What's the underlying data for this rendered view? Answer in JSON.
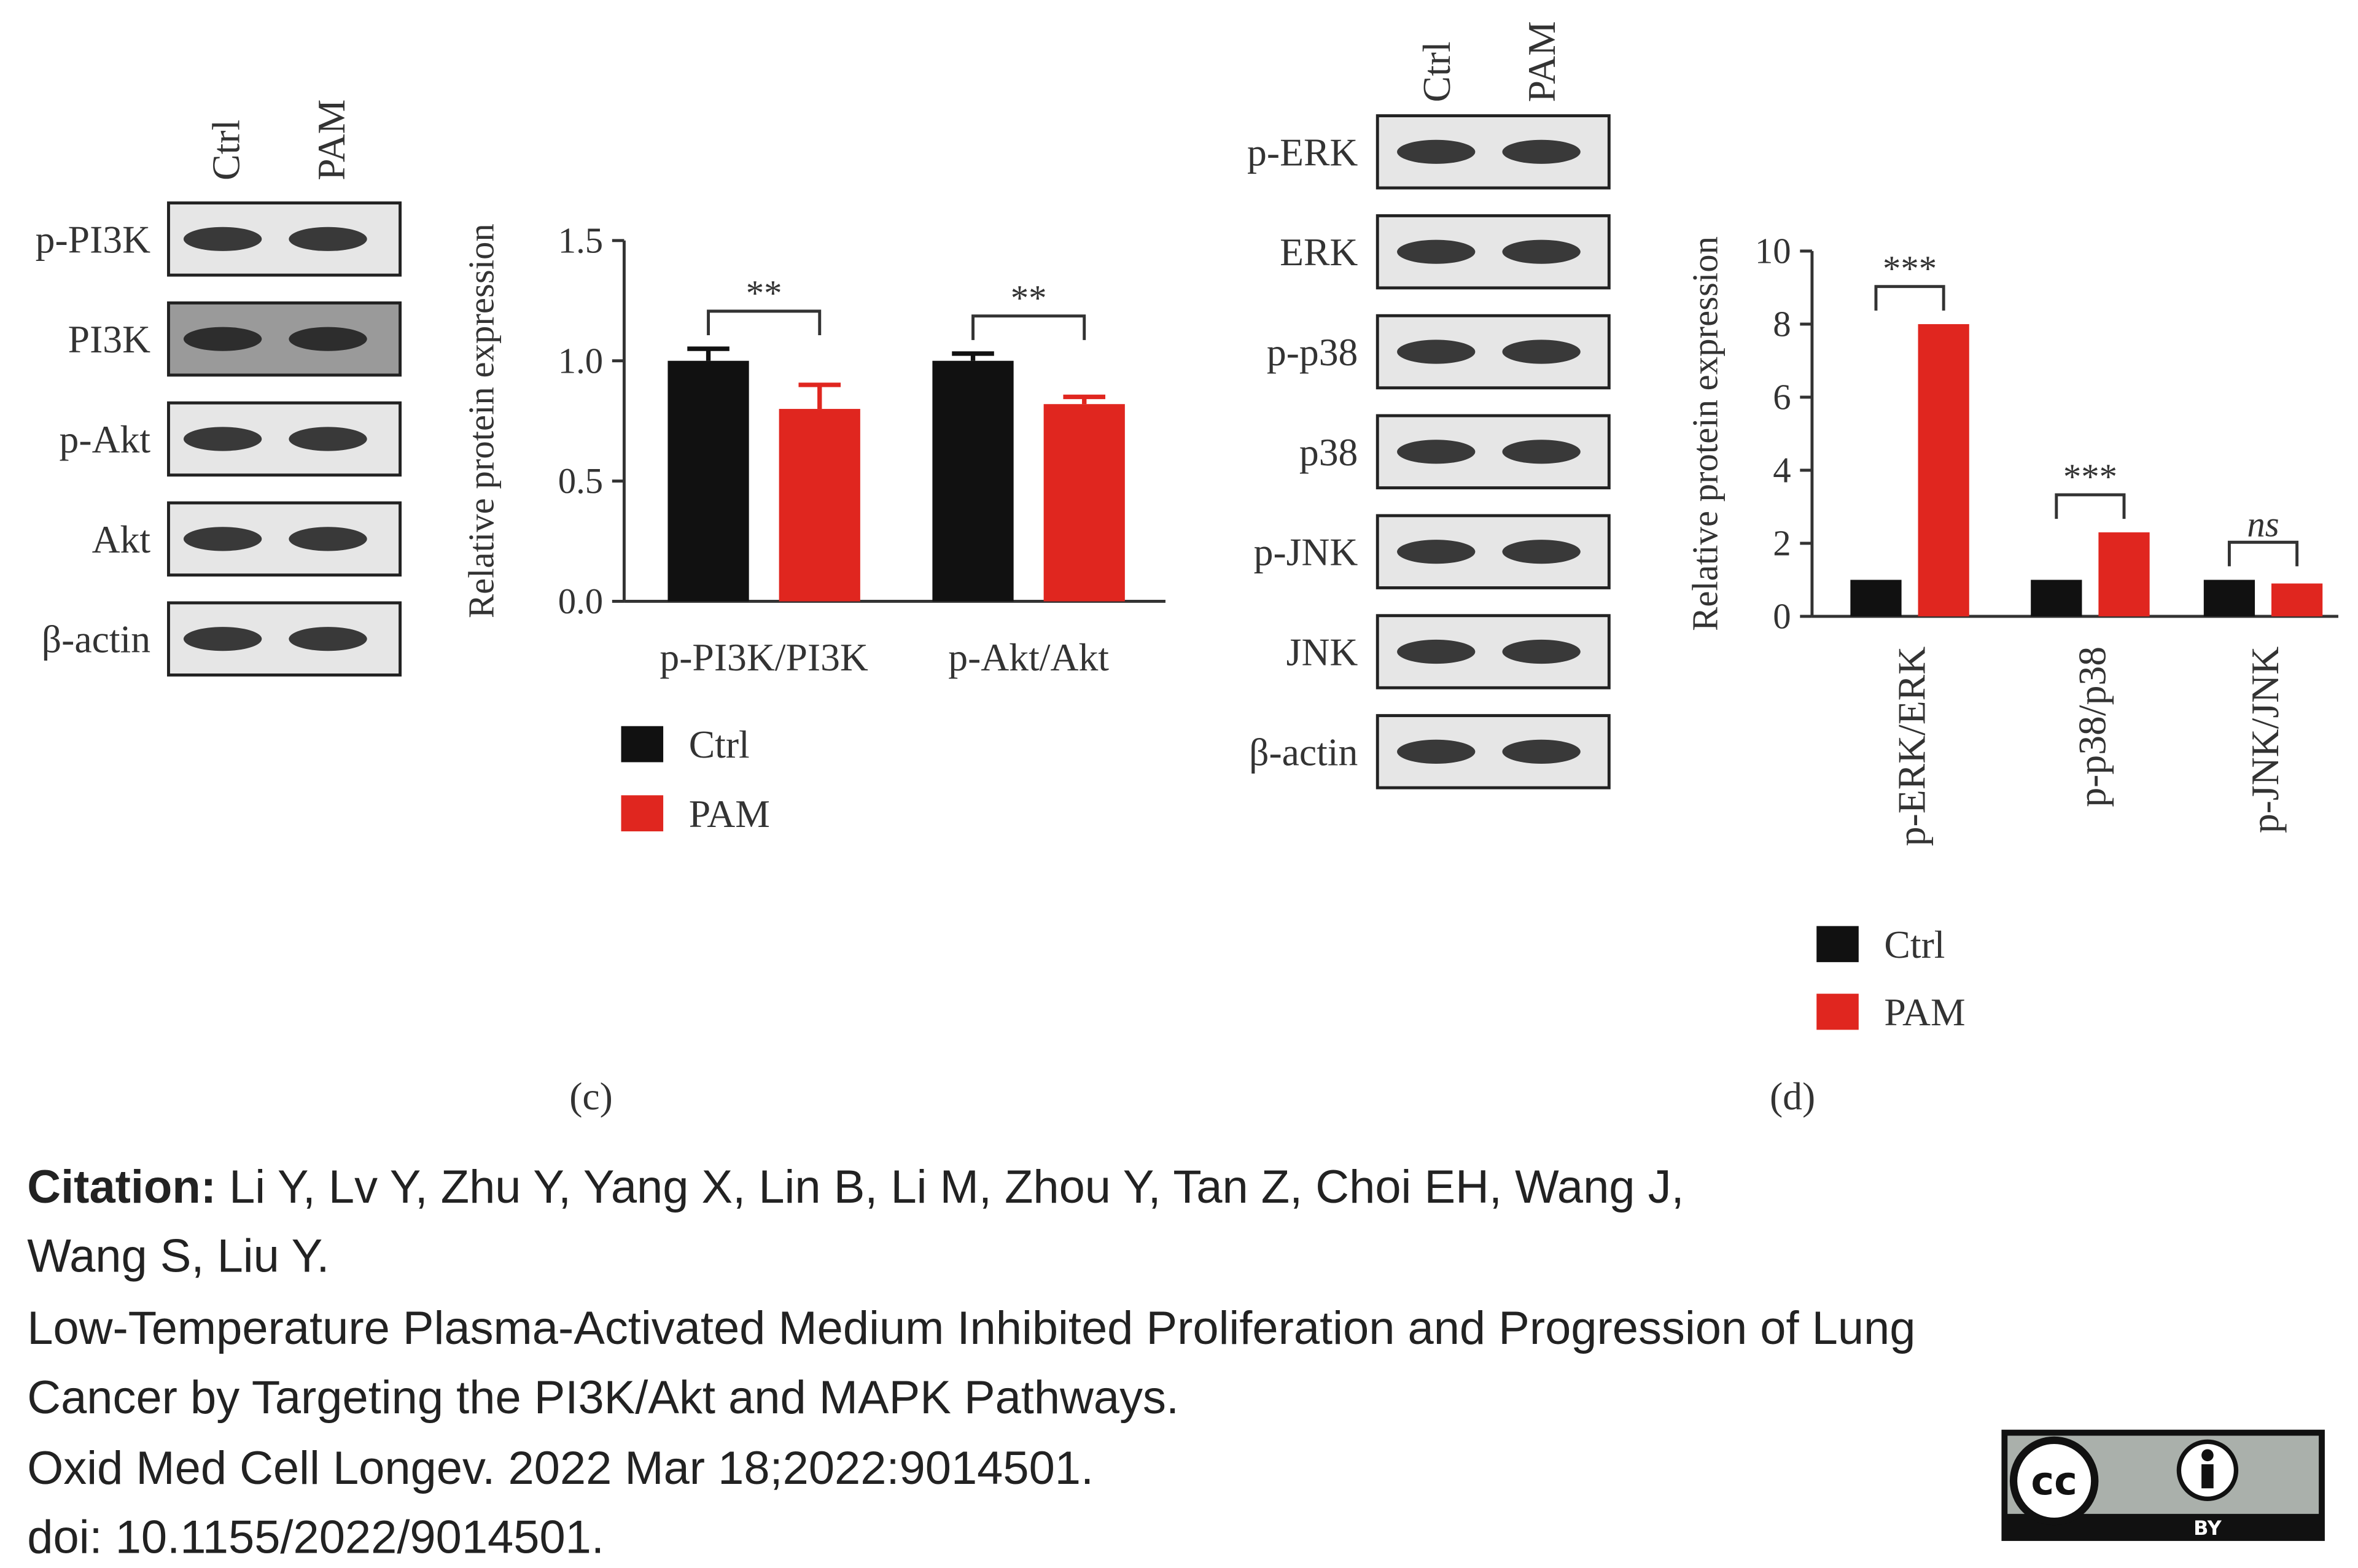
{
  "chart_data": [
    {
      "type": "bar",
      "ylabel": "Relative protein expression",
      "categories": [
        "p-PI3K/PI3K",
        "p-Akt/Akt"
      ],
      "series": [
        {
          "name": "Ctrl",
          "color": "#111111",
          "values": [
            1.0,
            1.0
          ],
          "errors": [
            0.05,
            0.03
          ]
        },
        {
          "name": "PAM",
          "color": "#e0261f",
          "values": [
            0.8,
            0.82
          ],
          "errors": [
            0.1,
            0.03
          ]
        }
      ],
      "significance": [
        "**",
        "**"
      ],
      "ylim": [
        0,
        1.5
      ],
      "yticks": [
        {
          "value": 0,
          "label": "0.0"
        },
        {
          "value": 0.5,
          "label": "0.5"
        },
        {
          "value": 1,
          "label": "1.0"
        },
        {
          "value": 1.5,
          "label": "1.5"
        }
      ],
      "grid": false
    },
    {
      "type": "bar",
      "ylabel": "Relative protein expression",
      "categories": [
        "p-ERK/ERK",
        "p-p38/p38",
        "p-JNK/JNK"
      ],
      "series": [
        {
          "name": "Ctrl",
          "color": "#111111",
          "values": [
            1,
            1,
            1
          ]
        },
        {
          "name": "PAM",
          "color": "#e0261f",
          "values": [
            8.0,
            2.3,
            0.9
          ]
        }
      ],
      "significance": [
        "***",
        "***",
        "ns"
      ],
      "ylim": [
        0,
        10
      ],
      "yticks": [
        0,
        2,
        4,
        6,
        8,
        10
      ],
      "grid": false
    }
  ],
  "blots": [
    {
      "lanes": [
        "Ctrl",
        "PAM"
      ],
      "rows": [
        "p-PI3K",
        "PI3K",
        "p-Akt",
        "Akt",
        "β-actin"
      ]
    },
    {
      "lanes": [
        "Ctrl",
        "PAM"
      ],
      "rows": [
        "p-ERK",
        "ERK",
        "p-p38",
        "p38",
        "p-JNK",
        "JNK",
        "β-actin"
      ]
    }
  ],
  "panel_labels": [
    "(c)",
    "(d)"
  ],
  "citation": {
    "label": "Citation:",
    "authors_lines": [
      " Li Y, Lv Y, Zhu Y, Yang X, Lin B, Li M, Zhou Y, Tan Z, Choi EH, Wang J,",
      "Wang S, Liu Y."
    ],
    "title_lines": [
      "Low-Temperature Plasma-Activated Medium Inhibited Proliferation and Progression of Lung",
      "Cancer by Targeting the PI3K/Akt and MAPK Pathways."
    ],
    "journal": "Oxid Med Cell Longev. 2022 Mar 18;2022:9014501.",
    "doi": "doi: 10.1155/2022/9014501."
  },
  "license": {
    "cc": "cc",
    "by": "BY"
  }
}
